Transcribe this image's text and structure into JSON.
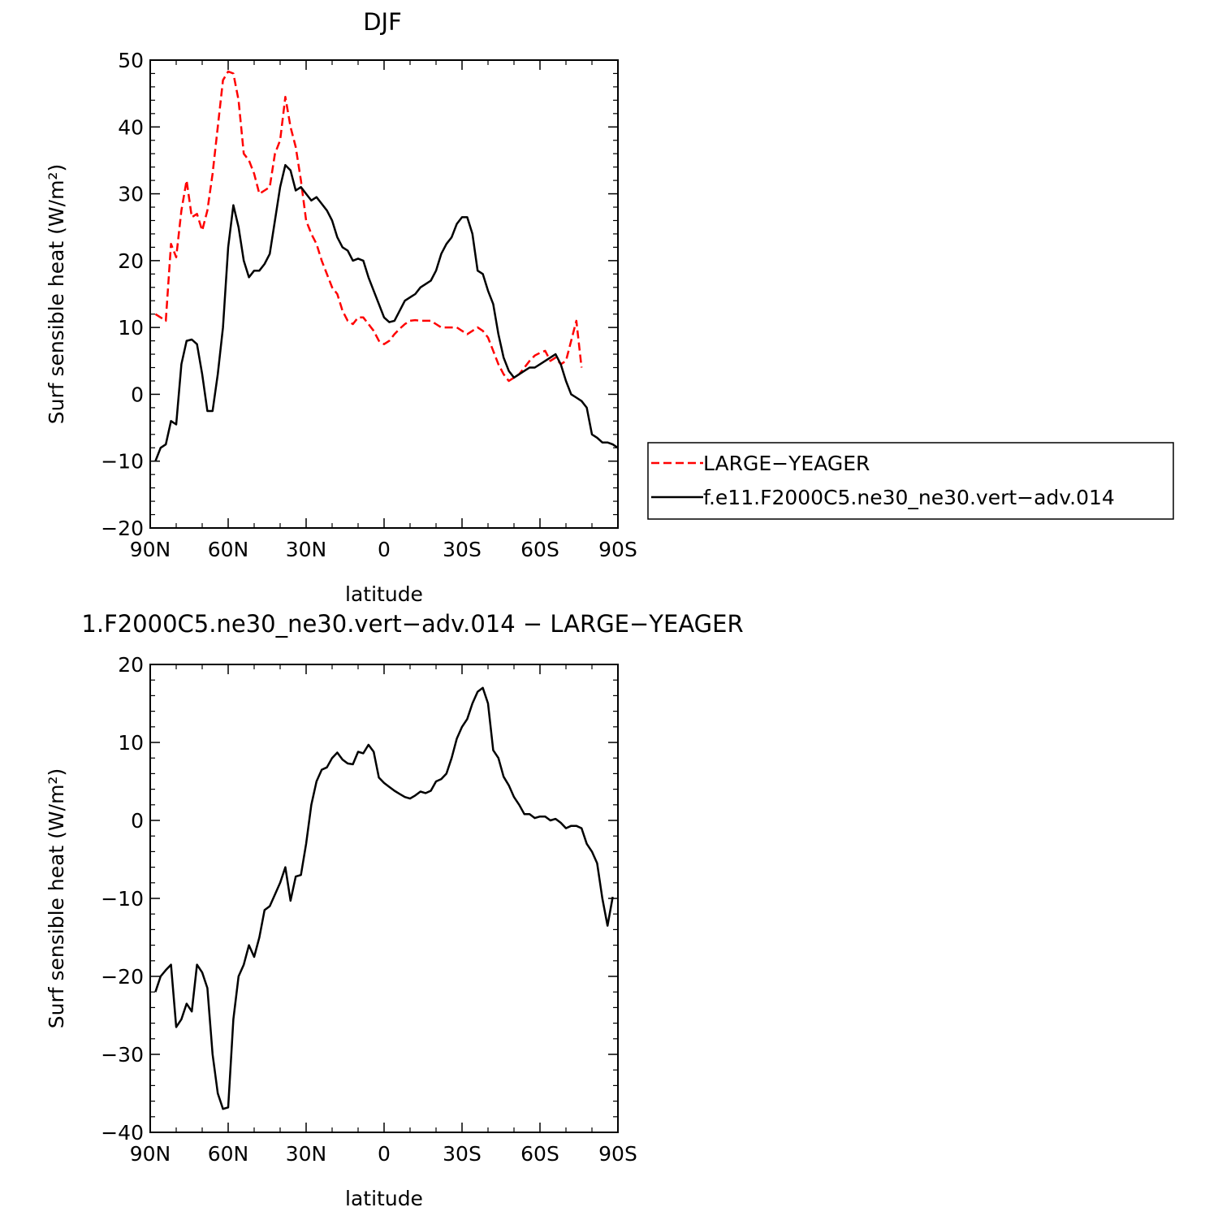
{
  "chart_data": [
    {
      "type": "line",
      "title": "DJF",
      "xlabel": "latitude",
      "ylabel": "Surf sensible heat (W/m²)",
      "xlim": [
        90,
        -90
      ],
      "ylim": [
        -20,
        50
      ],
      "xtick_values": [
        90,
        60,
        30,
        0,
        -30,
        -60,
        -90
      ],
      "xtick_labels": [
        "90N",
        "60N",
        "30N",
        "0",
        "30S",
        "60S",
        "90S"
      ],
      "ytick_values": [
        -20,
        -10,
        0,
        10,
        20,
        30,
        40,
        50
      ],
      "ytick_labels": [
        "−20",
        "−10",
        "0",
        "10",
        "20",
        "30",
        "40",
        "50"
      ],
      "legend_placement": "right-outside",
      "series": [
        {
          "name": "LARGE−YEAGER",
          "color": "#ff0000",
          "style": "dashed",
          "points": [
            [
              88,
              12
            ],
            [
              86,
              11.5
            ],
            [
              84,
              11
            ],
            [
              82,
              22.5
            ],
            [
              80,
              20.5
            ],
            [
              78,
              27.5
            ],
            [
              76,
              32
            ],
            [
              74,
              26.5
            ],
            [
              72,
              27
            ],
            [
              70,
              24.5
            ],
            [
              68,
              27.5
            ],
            [
              66,
              33
            ],
            [
              64,
              40
            ],
            [
              62,
              47
            ],
            [
              60,
              48.3
            ],
            [
              58,
              48
            ],
            [
              56,
              44
            ],
            [
              54,
              36
            ],
            [
              52,
              35
            ],
            [
              50,
              33
            ],
            [
              48,
              30
            ],
            [
              46,
              30.5
            ],
            [
              44,
              31
            ],
            [
              42,
              36
            ],
            [
              40,
              38
            ],
            [
              38,
              44.5
            ],
            [
              36,
              40
            ],
            [
              34,
              37
            ],
            [
              32,
              32
            ],
            [
              30,
              26
            ],
            [
              28,
              24
            ],
            [
              26,
              22.5
            ],
            [
              24,
              20
            ],
            [
              22,
              18
            ],
            [
              20,
              16
            ],
            [
              18,
              15
            ],
            [
              16,
              12.5
            ],
            [
              14,
              11
            ],
            [
              12,
              10.5
            ],
            [
              10,
              11.5
            ],
            [
              8,
              11.5
            ],
            [
              6,
              10.5
            ],
            [
              4,
              9.5
            ],
            [
              2,
              8
            ],
            [
              0,
              7.5
            ],
            [
              -2,
              8
            ],
            [
              -4,
              9
            ],
            [
              -6,
              9.8
            ],
            [
              -8,
              10.5
            ],
            [
              -10,
              11
            ],
            [
              -12,
              11.1
            ],
            [
              -14,
              11
            ],
            [
              -16,
              11
            ],
            [
              -18,
              11
            ],
            [
              -20,
              10.5
            ],
            [
              -22,
              10
            ],
            [
              -24,
              10
            ],
            [
              -26,
              10
            ],
            [
              -28,
              10
            ],
            [
              -30,
              9.5
            ],
            [
              -32,
              9
            ],
            [
              -34,
              9.5
            ],
            [
              -36,
              10
            ],
            [
              -38,
              9.5
            ],
            [
              -40,
              8.5
            ],
            [
              -42,
              6.5
            ],
            [
              -44,
              4.5
            ],
            [
              -46,
              3
            ],
            [
              -48,
              2
            ],
            [
              -50,
              2.5
            ],
            [
              -52,
              3
            ],
            [
              -54,
              4
            ],
            [
              -56,
              5
            ],
            [
              -58,
              5.8
            ],
            [
              -60,
              6.2
            ],
            [
              -62,
              6.5
            ],
            [
              -64,
              5
            ],
            [
              -66,
              5.5
            ],
            [
              -68,
              4.5
            ],
            [
              -70,
              5
            ],
            [
              -72,
              8
            ],
            [
              -74,
              11
            ],
            [
              -76,
              4
            ]
          ]
        },
        {
          "name": "f.e11.F2000C5.ne30_ne30.vert−adv.014",
          "color": "#000000",
          "style": "solid",
          "points": [
            [
              88,
              -10
            ],
            [
              86,
              -8
            ],
            [
              84,
              -7.5
            ],
            [
              82,
              -4
            ],
            [
              80,
              -4.5
            ],
            [
              78,
              4.5
            ],
            [
              76,
              8
            ],
            [
              74,
              8.2
            ],
            [
              72,
              7.5
            ],
            [
              70,
              3
            ],
            [
              68,
              -2.5
            ],
            [
              66,
              -2.5
            ],
            [
              64,
              3
            ],
            [
              62,
              10
            ],
            [
              60,
              22
            ],
            [
              58,
              28.3
            ],
            [
              56,
              25
            ],
            [
              54,
              20
            ],
            [
              52,
              17.5
            ],
            [
              50,
              18.5
            ],
            [
              48,
              18.5
            ],
            [
              46,
              19.5
            ],
            [
              44,
              21
            ],
            [
              42,
              26
            ],
            [
              40,
              31
            ],
            [
              38,
              34.3
            ],
            [
              36,
              33.5
            ],
            [
              34,
              30.5
            ],
            [
              32,
              31
            ],
            [
              30,
              30
            ],
            [
              28,
              29
            ],
            [
              26,
              29.5
            ],
            [
              24,
              28.5
            ],
            [
              22,
              27.5
            ],
            [
              20,
              26
            ],
            [
              18,
              23.5
            ],
            [
              16,
              22
            ],
            [
              14,
              21.5
            ],
            [
              12,
              20
            ],
            [
              10,
              20.3
            ],
            [
              8,
              20
            ],
            [
              6,
              17.5
            ],
            [
              4,
              15.5
            ],
            [
              2,
              13.5
            ],
            [
              0,
              11.5
            ],
            [
              -2,
              10.8
            ],
            [
              -4,
              11
            ],
            [
              -6,
              12.5
            ],
            [
              -8,
              14
            ],
            [
              -10,
              14.5
            ],
            [
              -12,
              15
            ],
            [
              -14,
              16
            ],
            [
              -16,
              16.5
            ],
            [
              -18,
              17
            ],
            [
              -20,
              18.5
            ],
            [
              -22,
              21
            ],
            [
              -24,
              22.5
            ],
            [
              -26,
              23.5
            ],
            [
              -28,
              25.5
            ],
            [
              -30,
              26.5
            ],
            [
              -32,
              26.5
            ],
            [
              -34,
              24
            ],
            [
              -36,
              18.5
            ],
            [
              -38,
              18
            ],
            [
              -40,
              15.5
            ],
            [
              -42,
              13.5
            ],
            [
              -44,
              9
            ],
            [
              -46,
              5.5
            ],
            [
              -48,
              3.5
            ],
            [
              -50,
              2.5
            ],
            [
              -52,
              3
            ],
            [
              -54,
              3.5
            ],
            [
              -56,
              4
            ],
            [
              -58,
              4
            ],
            [
              -60,
              4.5
            ],
            [
              -62,
              5
            ],
            [
              -64,
              5.5
            ],
            [
              -66,
              6
            ],
            [
              -68,
              4.5
            ],
            [
              -70,
              2
            ],
            [
              -72,
              0
            ],
            [
              -74,
              -0.5
            ],
            [
              -76,
              -1
            ],
            [
              -78,
              -2
            ],
            [
              -80,
              -6
            ],
            [
              -82,
              -6.5
            ],
            [
              -84,
              -7.2
            ],
            [
              -86,
              -7.2
            ],
            [
              -88,
              -7.5
            ],
            [
              -90,
              -8
            ]
          ]
        }
      ]
    },
    {
      "type": "line",
      "title": "1.F2000C5.ne30_ne30.vert−adv.014 − LARGE−YEAGER",
      "xlabel": "latitude",
      "ylabel": "Surf sensible heat (W/m²)",
      "xlim": [
        90,
        -90
      ],
      "ylim": [
        -40,
        20
      ],
      "xtick_values": [
        90,
        60,
        30,
        0,
        -30,
        -60,
        -90
      ],
      "xtick_labels": [
        "90N",
        "60N",
        "30N",
        "0",
        "30S",
        "60S",
        "90S"
      ],
      "ytick_values": [
        -40,
        -30,
        -20,
        -10,
        0,
        10,
        20
      ],
      "ytick_labels": [
        "−40",
        "−30",
        "−20",
        "−10",
        "0",
        "10",
        "20"
      ],
      "series": [
        {
          "color": "#000000",
          "style": "solid",
          "points": [
            [
              88,
              -22
            ],
            [
              86,
              -20
            ],
            [
              84,
              -19.2
            ],
            [
              82,
              -18.5
            ],
            [
              80,
              -26.5
            ],
            [
              78,
              -25.5
            ],
            [
              76,
              -23.5
            ],
            [
              74,
              -24.5
            ],
            [
              72,
              -18.5
            ],
            [
              70,
              -19.5
            ],
            [
              68,
              -21.5
            ],
            [
              66,
              -30
            ],
            [
              64,
              -35
            ],
            [
              62,
              -37
            ],
            [
              60,
              -36.8
            ],
            [
              58,
              -25.5
            ],
            [
              56,
              -20
            ],
            [
              54,
              -18.5
            ],
            [
              52,
              -16
            ],
            [
              50,
              -17.5
            ],
            [
              48,
              -15
            ],
            [
              46,
              -11.5
            ],
            [
              44,
              -11
            ],
            [
              42,
              -9.5
            ],
            [
              40,
              -8
            ],
            [
              38,
              -6
            ],
            [
              36,
              -10.3
            ],
            [
              34,
              -7.2
            ],
            [
              32,
              -7
            ],
            [
              30,
              -3
            ],
            [
              28,
              2
            ],
            [
              26,
              5
            ],
            [
              24,
              6.5
            ],
            [
              22,
              6.8
            ],
            [
              20,
              8
            ],
            [
              18,
              8.7
            ],
            [
              16,
              7.8
            ],
            [
              14,
              7.3
            ],
            [
              12,
              7.2
            ],
            [
              10,
              8.8
            ],
            [
              8,
              8.6
            ],
            [
              6,
              9.7
            ],
            [
              4,
              8.8
            ],
            [
              2,
              5.5
            ],
            [
              0,
              4.8
            ],
            [
              -2,
              4.3
            ],
            [
              -4,
              3.8
            ],
            [
              -6,
              3.4
            ],
            [
              -8,
              3
            ],
            [
              -10,
              2.8
            ],
            [
              -12,
              3.2
            ],
            [
              -14,
              3.7
            ],
            [
              -16,
              3.5
            ],
            [
              -18,
              3.8
            ],
            [
              -20,
              5
            ],
            [
              -22,
              5.3
            ],
            [
              -24,
              6
            ],
            [
              -26,
              8
            ],
            [
              -28,
              10.5
            ],
            [
              -30,
              12
            ],
            [
              -32,
              13
            ],
            [
              -34,
              15
            ],
            [
              -36,
              16.5
            ],
            [
              -38,
              17
            ],
            [
              -40,
              15
            ],
            [
              -42,
              9
            ],
            [
              -44,
              8
            ],
            [
              -46,
              5.6
            ],
            [
              -48,
              4.5
            ],
            [
              -50,
              3
            ],
            [
              -52,
              2
            ],
            [
              -54,
              0.8
            ],
            [
              -56,
              0.8
            ],
            [
              -58,
              0.3
            ],
            [
              -60,
              0.5
            ],
            [
              -62,
              0.5
            ],
            [
              -64,
              0
            ],
            [
              -66,
              0.2
            ],
            [
              -68,
              -0.3
            ],
            [
              -70,
              -1
            ],
            [
              -72,
              -0.7
            ],
            [
              -74,
              -0.7
            ],
            [
              -76,
              -1
            ],
            [
              -78,
              -3
            ],
            [
              -80,
              -4
            ],
            [
              -82,
              -5.5
            ],
            [
              -84,
              -10
            ],
            [
              -86,
              -13.5
            ],
            [
              -88,
              -9.8
            ]
          ]
        }
      ]
    }
  ]
}
